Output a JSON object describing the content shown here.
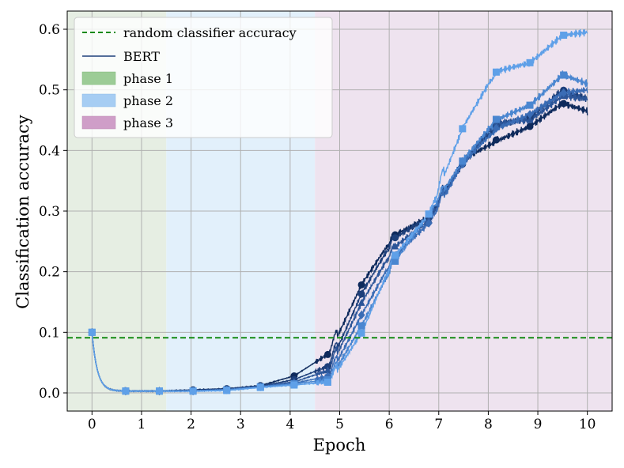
{
  "chart_data": {
    "type": "line",
    "title": "",
    "xlabel": "Epoch",
    "ylabel": "Classification accuracy",
    "xlim": [
      -0.5,
      10.5
    ],
    "ylim": [
      -0.03,
      0.63
    ],
    "x_ticks": [
      0,
      1,
      2,
      3,
      4,
      5,
      6,
      7,
      8,
      9,
      10
    ],
    "y_ticks": [
      0.0,
      0.1,
      0.2,
      0.3,
      0.4,
      0.5,
      0.6
    ],
    "grid": true,
    "legend_position": "top-left",
    "colors": {
      "random_line": "#138a13",
      "phase1_fill": "#e6eee3",
      "phase2_fill": "#e2f0fb",
      "phase3_fill": "#eee3ef",
      "phase1_swatch": "#9ccc96",
      "phase2_swatch": "#a6cdf3",
      "phase3_swatch": "#cf9ec8",
      "bert_legend": "#1d3f7a",
      "series": [
        "#0e2a5c",
        "#1d3f7a",
        "#2c5598",
        "#3a6cb5",
        "#4a86d0",
        "#5fa0e8"
      ]
    },
    "phases": [
      {
        "name": "phase 1",
        "x_start": -0.5,
        "x_end": 1.5
      },
      {
        "name": "phase 2",
        "x_start": 1.5,
        "x_end": 4.5
      },
      {
        "name": "phase 3",
        "x_start": 4.5,
        "x_end": 10.5
      }
    ],
    "random_classifier_accuracy": 0.091,
    "legend": [
      "random classifier accuracy",
      "BERT",
      "phase 1",
      "phase 2",
      "phase 3"
    ],
    "markers": [
      "circle",
      "circle",
      "triangle",
      "diamond",
      "square",
      "square"
    ],
    "marker_x": [
      0.0,
      0.68,
      1.36,
      2.04,
      2.72,
      3.4,
      4.08,
      4.76,
      5.44,
      6.12,
      6.8,
      7.48,
      8.16,
      8.84,
      9.52
    ],
    "step_x": [
      0,
      0.68,
      1.36,
      2.04,
      2.72,
      3.4,
      4.08,
      4.8,
      5.45,
      6.1,
      6.8,
      7.5,
      8.15,
      8.85,
      9.5,
      10.0
    ],
    "series": [
      {
        "values": [
          0.1,
          0.003,
          0.003,
          0.005,
          0.007,
          0.012,
          0.028,
          0.066,
          0.18,
          0.26,
          0.29,
          0.385,
          0.415,
          0.44,
          0.478,
          0.465
        ]
      },
      {
        "values": [
          0.1,
          0.003,
          0.003,
          0.004,
          0.006,
          0.011,
          0.022,
          0.045,
          0.165,
          0.255,
          0.29,
          0.38,
          0.44,
          0.455,
          0.5,
          0.485
        ]
      },
      {
        "values": [
          0.1,
          0.003,
          0.003,
          0.004,
          0.006,
          0.011,
          0.018,
          0.038,
          0.15,
          0.24,
          0.285,
          0.385,
          0.445,
          0.45,
          0.49,
          0.485
        ]
      },
      {
        "values": [
          0.1,
          0.003,
          0.003,
          0.003,
          0.005,
          0.01,
          0.016,
          0.028,
          0.13,
          0.225,
          0.28,
          0.38,
          0.435,
          0.46,
          0.495,
          0.5
        ]
      },
      {
        "values": [
          0.1,
          0.003,
          0.003,
          0.003,
          0.005,
          0.01,
          0.015,
          0.022,
          0.112,
          0.215,
          0.295,
          0.385,
          0.45,
          0.475,
          0.525,
          0.51
        ]
      },
      {
        "values": [
          0.1,
          0.003,
          0.003,
          0.003,
          0.004,
          0.009,
          0.013,
          0.018,
          0.1,
          0.225,
          0.295,
          0.44,
          0.53,
          0.545,
          0.59,
          0.595
        ]
      }
    ]
  }
}
